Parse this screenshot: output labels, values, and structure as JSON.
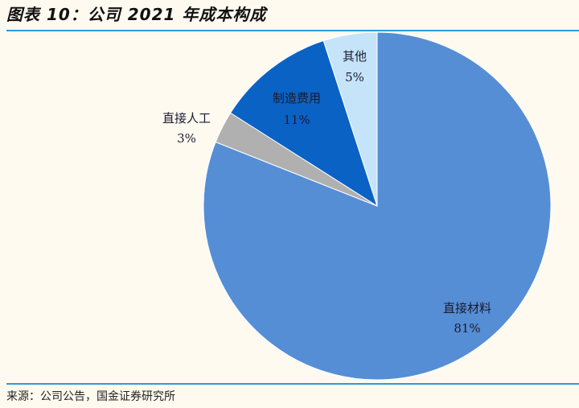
{
  "header": {
    "title": "图表 10：公司 2021 年成本构成"
  },
  "footer": {
    "source": "来源：公司公告，国金证券研究所"
  },
  "chart_data": {
    "type": "pie",
    "title": "图表 10：公司 2021 年成本构成",
    "categories": [
      "直接材料",
      "直接人工",
      "制造费用",
      "其他"
    ],
    "values": [
      81,
      3,
      11,
      5
    ],
    "value_labels": [
      "81%",
      "3%",
      "11%",
      "5%"
    ],
    "colors": [
      "#558ed5",
      "#b0b0b0",
      "#0a62c4",
      "#c5e4fa"
    ],
    "start_angle": "12 o'clock, clockwise",
    "legend": "none (data labels)"
  },
  "colors": {
    "accent_rule": "#2b9bd8",
    "background": "#fffaf0"
  }
}
